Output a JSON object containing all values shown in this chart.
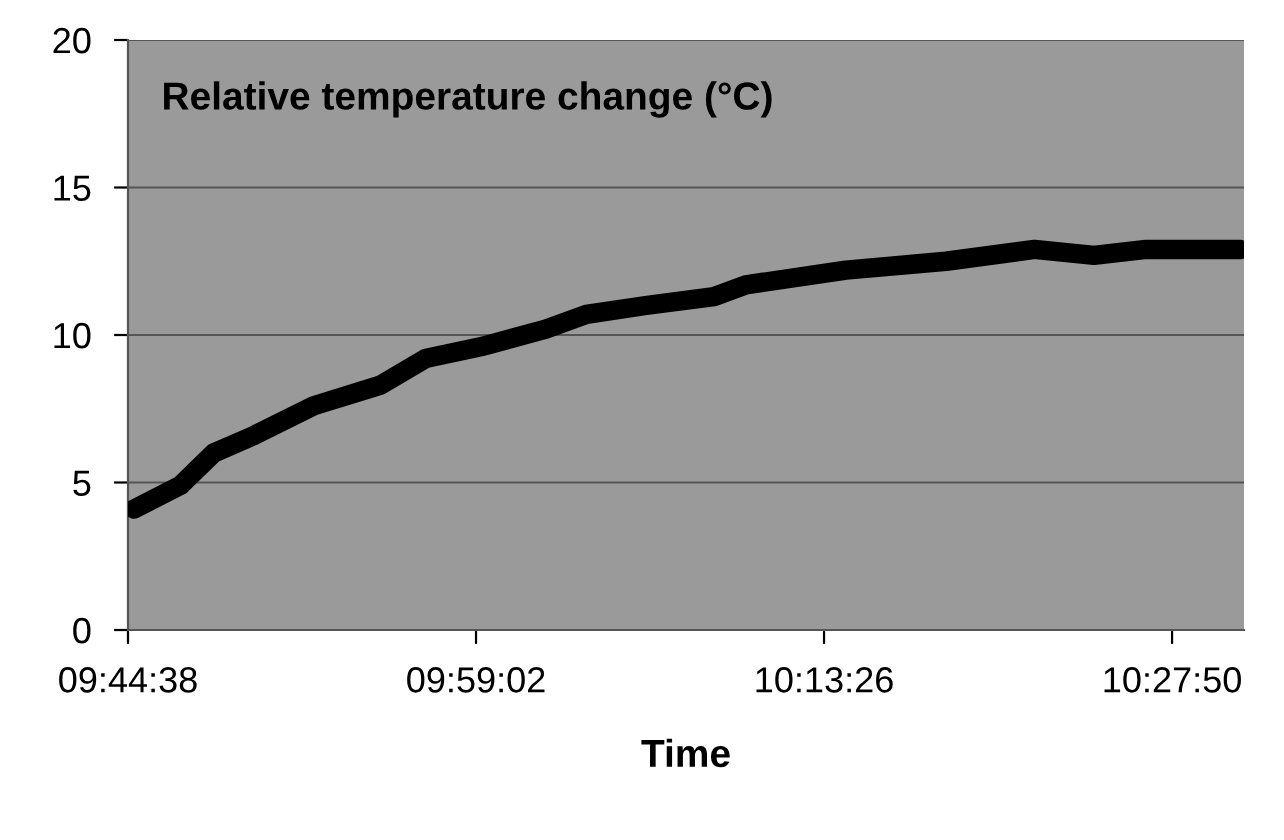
{
  "chart_data": {
    "type": "line",
    "title": "Relative temperature change (°C)",
    "xlabel": "Time",
    "x": [
      9.748,
      9.78,
      9.803,
      9.831,
      9.872,
      9.918,
      9.949,
      9.987,
      10.032,
      10.06,
      10.101,
      10.148,
      10.17,
      10.239,
      10.308,
      10.369,
      10.41,
      10.446,
      10.511
    ],
    "series": [
      {
        "color": "#000000",
        "values": [
          4.1,
          4.9,
          6.0,
          6.6,
          7.6,
          8.3,
          9.2,
          9.6,
          10.2,
          10.7,
          11.0,
          11.3,
          11.7,
          12.2,
          12.5,
          12.9,
          12.7,
          12.9,
          12.9
        ]
      }
    ],
    "xlim": [
      9.74389,
      10.5135
    ],
    "xticks": [
      {
        "value": 9.74389,
        "label": "09:44:38"
      },
      {
        "value": 9.98389,
        "label": "09:59:02"
      },
      {
        "value": 10.22389,
        "label": "10:13:26"
      },
      {
        "value": 10.46389,
        "label": "10:27:50"
      }
    ],
    "ylim": [
      0,
      20
    ],
    "yticks": [
      0,
      5,
      10,
      15,
      20
    ],
    "grid": "y",
    "line_style": "solid"
  }
}
